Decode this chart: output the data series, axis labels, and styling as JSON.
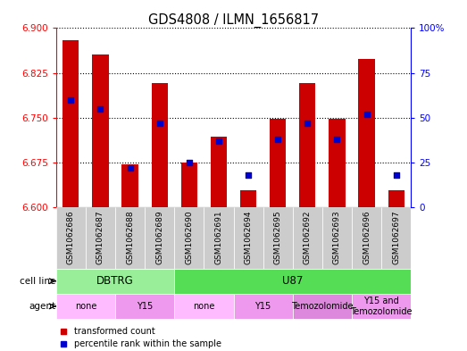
{
  "title": "GDS4808 / ILMN_1656817",
  "samples": [
    "GSM1062686",
    "GSM1062687",
    "GSM1062688",
    "GSM1062689",
    "GSM1062690",
    "GSM1062691",
    "GSM1062694",
    "GSM1062695",
    "GSM1062692",
    "GSM1062693",
    "GSM1062696",
    "GSM1062697"
  ],
  "transformed_count": [
    6.88,
    6.855,
    6.672,
    6.808,
    6.675,
    6.718,
    6.628,
    6.748,
    6.808,
    6.748,
    6.848,
    6.628
  ],
  "percentile_rank": [
    60,
    55,
    22,
    47,
    25,
    37,
    18,
    38,
    47,
    38,
    52,
    18
  ],
  "ylim_left": [
    6.6,
    6.9
  ],
  "ylim_right": [
    0,
    100
  ],
  "yticks_left": [
    6.6,
    6.675,
    6.75,
    6.825,
    6.9
  ],
  "yticks_right": [
    0,
    25,
    50,
    75,
    100
  ],
  "bar_color": "#cc0000",
  "dot_color": "#0000cc",
  "background_color": "#ffffff",
  "sample_bg_color": "#cccccc",
  "cell_line_groups": [
    {
      "label": "DBTRG",
      "start": 0,
      "end": 4,
      "color": "#99ee99"
    },
    {
      "label": "U87",
      "start": 4,
      "end": 12,
      "color": "#55dd55"
    }
  ],
  "agent_groups": [
    {
      "label": "none",
      "start": 0,
      "end": 2,
      "color": "#ffbbff"
    },
    {
      "label": "Y15",
      "start": 2,
      "end": 4,
      "color": "#ee99ee"
    },
    {
      "label": "none",
      "start": 4,
      "end": 6,
      "color": "#ffbbff"
    },
    {
      "label": "Y15",
      "start": 6,
      "end": 8,
      "color": "#ee99ee"
    },
    {
      "label": "Temozolomide",
      "start": 8,
      "end": 10,
      "color": "#dd88dd"
    },
    {
      "label": "Y15 and\nTemozolomide",
      "start": 10,
      "end": 12,
      "color": "#ee99ee"
    }
  ],
  "legend_items": [
    {
      "label": "transformed count",
      "color": "#cc0000"
    },
    {
      "label": "percentile rank within the sample",
      "color": "#0000cc"
    }
  ]
}
